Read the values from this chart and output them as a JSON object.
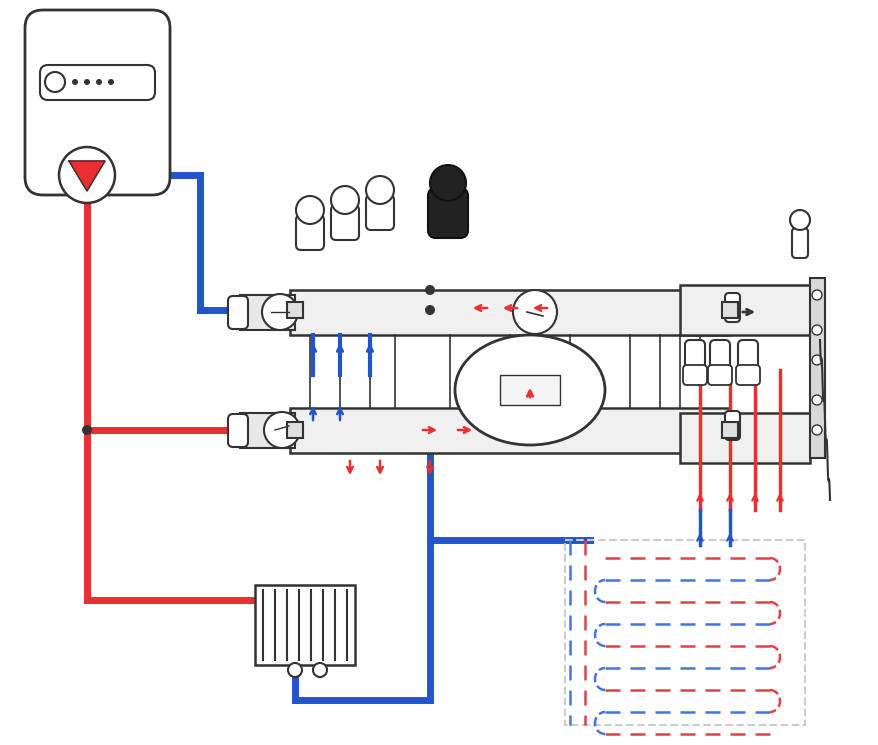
{
  "bg_color": "#ffffff",
  "red_color": "#e83030",
  "blue_color": "#2255cc",
  "dark_color": "#333333",
  "gray_color": "#888888",
  "light_gray": "#cccccc",
  "dashed_red": "#dd4444",
  "dashed_blue": "#4477dd",
  "figsize": [
    8.79,
    7.45
  ],
  "dpi": 100
}
